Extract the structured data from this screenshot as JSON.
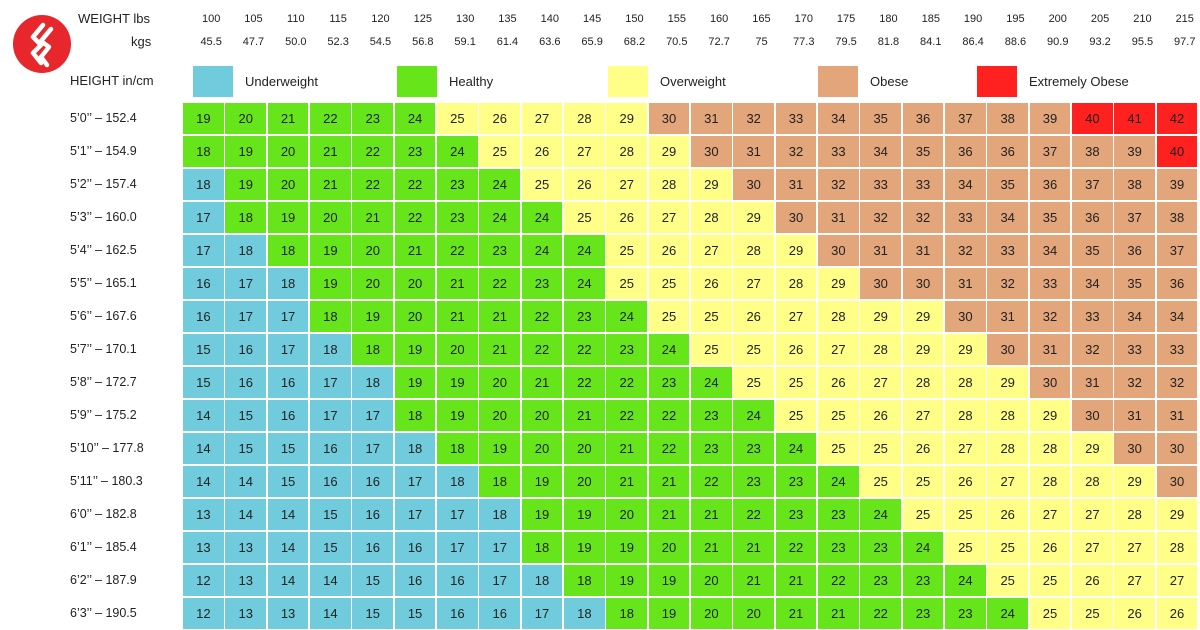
{
  "chart_data": {
    "type": "table",
    "axis_labels": {
      "weight": "WEIGHT lbs",
      "kgs": "kgs",
      "height": "HEIGHT in/cm"
    },
    "weights_lbs": [
      "100",
      "105",
      "110",
      "115",
      "120",
      "125",
      "130",
      "135",
      "140",
      "145",
      "150",
      "155",
      "160",
      "165",
      "170",
      "175",
      "180",
      "185",
      "190",
      "195",
      "200",
      "205",
      "210",
      "215"
    ],
    "weights_kg": [
      "45.5",
      "47.7",
      "50.0",
      "52.3",
      "54.5",
      "56.8",
      "59.1",
      "61.4",
      "63.6",
      "65.9",
      "68.2",
      "70.5",
      "72.7",
      "75",
      "77.3",
      "79.5",
      "81.8",
      "84.1",
      "86.4",
      "88.6",
      "90.9",
      "93.2",
      "95.5",
      "97.7"
    ],
    "heights": [
      "5’0’’ – 152.4",
      "5’1’’ – 154.9",
      "5’2’’ – 157.4",
      "5’3’’ – 160.0",
      "5’4’’ – 162.5",
      "5’5’’ – 165.1",
      "5’6’’ – 167.6",
      "5’7’’ – 170.1",
      "5’8’’ – 172.7",
      "5’9’’ – 175.2",
      "5’10’’ – 177.8",
      "5’11’’ – 180.3",
      "6’0’’ – 182.8",
      "6’1’’ – 185.4",
      "6’2’’ – 187.9",
      "6’3’’ – 190.5"
    ],
    "legend": [
      {
        "label": "Underweight",
        "color": "#70ccdc"
      },
      {
        "label": "Healthy",
        "color": "#66e61a"
      },
      {
        "label": "Overweight",
        "color": "#ffff88"
      },
      {
        "label": "Obese",
        "color": "#e3a57a"
      },
      {
        "label": "Extremely Obese",
        "color": "#ff2020"
      }
    ],
    "values": [
      [
        19,
        20,
        21,
        22,
        23,
        24,
        25,
        26,
        27,
        28,
        29,
        30,
        31,
        32,
        33,
        34,
        35,
        36,
        37,
        38,
        39,
        40,
        41,
        42
      ],
      [
        18,
        19,
        20,
        21,
        22,
        23,
        24,
        25,
        26,
        27,
        28,
        29,
        30,
        31,
        32,
        33,
        34,
        35,
        36,
        36,
        37,
        38,
        39,
        40
      ],
      [
        18,
        19,
        20,
        21,
        22,
        22,
        23,
        24,
        25,
        26,
        27,
        28,
        29,
        30,
        31,
        32,
        33,
        33,
        34,
        35,
        36,
        37,
        38,
        39
      ],
      [
        17,
        18,
        19,
        20,
        21,
        22,
        23,
        24,
        24,
        25,
        26,
        27,
        28,
        29,
        30,
        31,
        32,
        32,
        33,
        34,
        35,
        36,
        37,
        38
      ],
      [
        17,
        18,
        18,
        19,
        20,
        21,
        22,
        23,
        24,
        24,
        25,
        26,
        27,
        28,
        29,
        30,
        31,
        31,
        32,
        33,
        34,
        35,
        36,
        37
      ],
      [
        16,
        17,
        18,
        19,
        20,
        20,
        21,
        22,
        23,
        24,
        25,
        25,
        26,
        27,
        28,
        29,
        30,
        30,
        31,
        32,
        33,
        34,
        35,
        36
      ],
      [
        16,
        17,
        17,
        18,
        19,
        20,
        21,
        21,
        22,
        23,
        24,
        25,
        25,
        26,
        27,
        28,
        29,
        29,
        30,
        31,
        32,
        33,
        34,
        34
      ],
      [
        15,
        16,
        17,
        18,
        18,
        19,
        20,
        21,
        22,
        22,
        23,
        24,
        25,
        25,
        26,
        27,
        28,
        29,
        29,
        30,
        31,
        32,
        33,
        33
      ],
      [
        15,
        16,
        16,
        17,
        18,
        19,
        19,
        20,
        21,
        22,
        22,
        23,
        24,
        25,
        25,
        26,
        27,
        28,
        28,
        29,
        30,
        31,
        32,
        32
      ],
      [
        14,
        15,
        16,
        17,
        17,
        18,
        19,
        20,
        20,
        21,
        22,
        22,
        23,
        24,
        25,
        25,
        26,
        27,
        28,
        28,
        29,
        30,
        31,
        31
      ],
      [
        14,
        15,
        15,
        16,
        17,
        18,
        18,
        19,
        20,
        20,
        21,
        22,
        23,
        23,
        24,
        25,
        25,
        26,
        27,
        28,
        28,
        29,
        30,
        30
      ],
      [
        14,
        14,
        15,
        16,
        16,
        17,
        18,
        18,
        19,
        20,
        21,
        21,
        22,
        23,
        23,
        24,
        25,
        25,
        26,
        27,
        28,
        28,
        29,
        30
      ],
      [
        13,
        14,
        14,
        15,
        16,
        17,
        17,
        18,
        19,
        19,
        20,
        21,
        21,
        22,
        23,
        23,
        24,
        25,
        25,
        26,
        27,
        27,
        28,
        29
      ],
      [
        13,
        13,
        14,
        15,
        16,
        16,
        17,
        17,
        18,
        19,
        19,
        20,
        21,
        21,
        22,
        23,
        23,
        24,
        25,
        25,
        26,
        27,
        27,
        28
      ],
      [
        12,
        13,
        14,
        14,
        15,
        16,
        16,
        17,
        18,
        18,
        19,
        19,
        20,
        21,
        21,
        22,
        23,
        23,
        24,
        25,
        25,
        26,
        27,
        27
      ],
      [
        12,
        13,
        13,
        14,
        15,
        15,
        16,
        16,
        17,
        18,
        18,
        19,
        20,
        20,
        21,
        21,
        22,
        23,
        23,
        24,
        25,
        25,
        26,
        26
      ]
    ],
    "categories": [
      [
        "H",
        "H",
        "H",
        "H",
        "H",
        "H",
        "O",
        "O",
        "O",
        "O",
        "O",
        "B",
        "B",
        "B",
        "B",
        "B",
        "B",
        "B",
        "B",
        "B",
        "B",
        "E",
        "E",
        "E"
      ],
      [
        "H",
        "H",
        "H",
        "H",
        "H",
        "H",
        "H",
        "O",
        "O",
        "O",
        "O",
        "O",
        "B",
        "B",
        "B",
        "B",
        "B",
        "B",
        "B",
        "B",
        "B",
        "B",
        "B",
        "E"
      ],
      [
        "U",
        "H",
        "H",
        "H",
        "H",
        "H",
        "H",
        "H",
        "O",
        "O",
        "O",
        "O",
        "O",
        "B",
        "B",
        "B",
        "B",
        "B",
        "B",
        "B",
        "B",
        "B",
        "B",
        "B"
      ],
      [
        "U",
        "H",
        "H",
        "H",
        "H",
        "H",
        "H",
        "H",
        "H",
        "O",
        "O",
        "O",
        "O",
        "O",
        "B",
        "B",
        "B",
        "B",
        "B",
        "B",
        "B",
        "B",
        "B",
        "B"
      ],
      [
        "U",
        "U",
        "H",
        "H",
        "H",
        "H",
        "H",
        "H",
        "H",
        "H",
        "O",
        "O",
        "O",
        "O",
        "O",
        "B",
        "B",
        "B",
        "B",
        "B",
        "B",
        "B",
        "B",
        "B"
      ],
      [
        "U",
        "U",
        "U",
        "H",
        "H",
        "H",
        "H",
        "H",
        "H",
        "H",
        "O",
        "O",
        "O",
        "O",
        "O",
        "O",
        "B",
        "B",
        "B",
        "B",
        "B",
        "B",
        "B",
        "B"
      ],
      [
        "U",
        "U",
        "U",
        "H",
        "H",
        "H",
        "H",
        "H",
        "H",
        "H",
        "H",
        "O",
        "O",
        "O",
        "O",
        "O",
        "O",
        "O",
        "B",
        "B",
        "B",
        "B",
        "B",
        "B"
      ],
      [
        "U",
        "U",
        "U",
        "U",
        "H",
        "H",
        "H",
        "H",
        "H",
        "H",
        "H",
        "H",
        "O",
        "O",
        "O",
        "O",
        "O",
        "O",
        "O",
        "B",
        "B",
        "B",
        "B",
        "B"
      ],
      [
        "U",
        "U",
        "U",
        "U",
        "U",
        "H",
        "H",
        "H",
        "H",
        "H",
        "H",
        "H",
        "H",
        "O",
        "O",
        "O",
        "O",
        "O",
        "O",
        "O",
        "B",
        "B",
        "B",
        "B"
      ],
      [
        "U",
        "U",
        "U",
        "U",
        "U",
        "H",
        "H",
        "H",
        "H",
        "H",
        "H",
        "H",
        "H",
        "H",
        "O",
        "O",
        "O",
        "O",
        "O",
        "O",
        "O",
        "B",
        "B",
        "B"
      ],
      [
        "U",
        "U",
        "U",
        "U",
        "U",
        "U",
        "H",
        "H",
        "H",
        "H",
        "H",
        "H",
        "H",
        "H",
        "H",
        "O",
        "O",
        "O",
        "O",
        "O",
        "O",
        "O",
        "B",
        "B"
      ],
      [
        "U",
        "U",
        "U",
        "U",
        "U",
        "U",
        "U",
        "H",
        "H",
        "H",
        "H",
        "H",
        "H",
        "H",
        "H",
        "H",
        "O",
        "O",
        "O",
        "O",
        "O",
        "O",
        "O",
        "B"
      ],
      [
        "U",
        "U",
        "U",
        "U",
        "U",
        "U",
        "U",
        "U",
        "H",
        "H",
        "H",
        "H",
        "H",
        "H",
        "H",
        "H",
        "H",
        "O",
        "O",
        "O",
        "O",
        "O",
        "O",
        "O"
      ],
      [
        "U",
        "U",
        "U",
        "U",
        "U",
        "U",
        "U",
        "U",
        "H",
        "H",
        "H",
        "H",
        "H",
        "H",
        "H",
        "H",
        "H",
        "H",
        "O",
        "O",
        "O",
        "O",
        "O",
        "O"
      ],
      [
        "U",
        "U",
        "U",
        "U",
        "U",
        "U",
        "U",
        "U",
        "U",
        "H",
        "H",
        "H",
        "H",
        "H",
        "H",
        "H",
        "H",
        "H",
        "H",
        "O",
        "O",
        "O",
        "O",
        "O"
      ],
      [
        "U",
        "U",
        "U",
        "U",
        "U",
        "U",
        "U",
        "U",
        "U",
        "U",
        "H",
        "H",
        "H",
        "H",
        "H",
        "H",
        "H",
        "H",
        "H",
        "H",
        "O",
        "O",
        "O",
        "O"
      ]
    ],
    "category_colors": {
      "U": "#70ccdc",
      "H": "#66e61a",
      "O": "#ffff88",
      "B": "#e3a57a",
      "E": "#ff2020"
    }
  },
  "logo": {
    "color": "#e8272d"
  }
}
